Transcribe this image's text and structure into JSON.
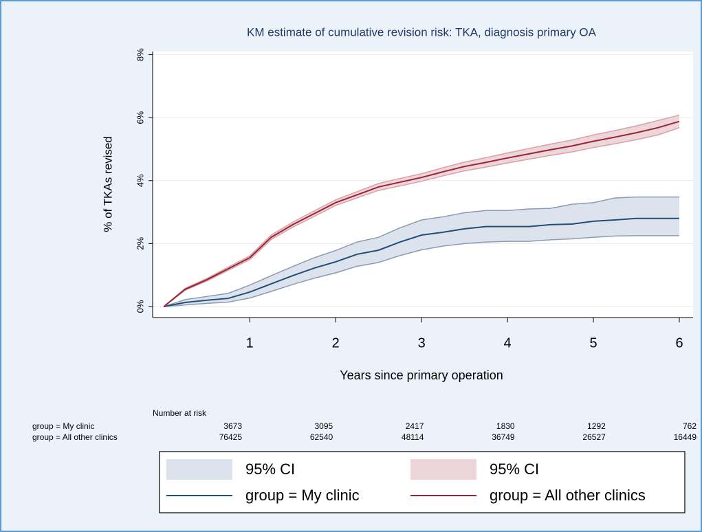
{
  "chart_data": {
    "type": "line",
    "title": "KM estimate of cumulative revision risk: TKA, diagnosis primary OA",
    "x_label": "Years since primary operation",
    "y_label": "% of TKAs revised",
    "x": [
      0,
      0.25,
      0.5,
      0.75,
      1,
      1.25,
      1.5,
      1.75,
      2,
      2.25,
      2.5,
      2.75,
      3,
      3.25,
      3.5,
      3.75,
      4,
      4.25,
      4.5,
      4.75,
      5,
      5.25,
      5.5,
      5.75,
      6
    ],
    "xlim": [
      -0.13,
      6.16
    ],
    "xticks": [
      1,
      2,
      3,
      4,
      5,
      6
    ],
    "ylim": [
      -0.35,
      8.1
    ],
    "yticks": [
      {
        "value": 0,
        "label": "0%"
      },
      {
        "value": 2,
        "label": "2%"
      },
      {
        "value": 4,
        "label": "4%"
      },
      {
        "value": 6,
        "label": "6%"
      },
      {
        "value": 8,
        "label": "8%"
      }
    ],
    "grid": true,
    "series": [
      {
        "name": "group = My clinic",
        "ci_name": "95% CI",
        "color": "#1f4e79",
        "ci_color": "#dde3ec",
        "ci_edge": "#8a9bb3",
        "values": [
          0,
          0.13,
          0.2,
          0.26,
          0.46,
          0.72,
          0.98,
          1.22,
          1.42,
          1.66,
          1.79,
          2.05,
          2.27,
          2.36,
          2.47,
          2.54,
          2.54,
          2.54,
          2.6,
          2.62,
          2.71,
          2.75,
          2.8,
          2.8,
          2.8
        ],
        "ci_lower": [
          0,
          0.05,
          0.1,
          0.14,
          0.27,
          0.48,
          0.7,
          0.9,
          1.07,
          1.28,
          1.4,
          1.62,
          1.8,
          1.92,
          2.0,
          2.05,
          2.07,
          2.07,
          2.12,
          2.15,
          2.2,
          2.24,
          2.25,
          2.25,
          2.25
        ],
        "ci_upper": [
          0,
          0.22,
          0.32,
          0.42,
          0.68,
          0.98,
          1.27,
          1.55,
          1.78,
          2.05,
          2.2,
          2.5,
          2.75,
          2.85,
          2.98,
          3.05,
          3.05,
          3.1,
          3.12,
          3.25,
          3.3,
          3.45,
          3.48,
          3.48,
          3.48
        ]
      },
      {
        "name": "group = All other clinics",
        "ci_name": "95% CI",
        "color": "#9b2335",
        "ci_color": "#ecd6d9",
        "ci_edge": "#d9a0a8",
        "values": [
          0,
          0.55,
          0.85,
          1.2,
          1.55,
          2.2,
          2.6,
          2.95,
          3.3,
          3.55,
          3.8,
          3.95,
          4.1,
          4.28,
          4.45,
          4.58,
          4.72,
          4.85,
          4.98,
          5.1,
          5.25,
          5.38,
          5.52,
          5.68,
          5.88
        ],
        "ci_lower": [
          0,
          0.52,
          0.81,
          1.15,
          1.49,
          2.13,
          2.52,
          2.86,
          3.21,
          3.45,
          3.69,
          3.83,
          3.98,
          4.15,
          4.31,
          4.43,
          4.56,
          4.68,
          4.8,
          4.91,
          5.05,
          5.17,
          5.3,
          5.45,
          5.68
        ],
        "ci_upper": [
          0,
          0.58,
          0.89,
          1.25,
          1.61,
          2.27,
          2.68,
          3.04,
          3.39,
          3.65,
          3.91,
          4.07,
          4.22,
          4.41,
          4.59,
          4.73,
          4.88,
          5.02,
          5.16,
          5.29,
          5.45,
          5.59,
          5.74,
          5.91,
          6.08
        ]
      }
    ],
    "number_at_risk": {
      "title": "Number at risk",
      "rows": [
        {
          "label": "group = My clinic",
          "values": [
            3673,
            3095,
            2417,
            1830,
            1292,
            762
          ]
        },
        {
          "label": "group = All other clinics",
          "values": [
            76425,
            62540,
            48114,
            36749,
            26527,
            16449
          ]
        }
      ]
    }
  }
}
